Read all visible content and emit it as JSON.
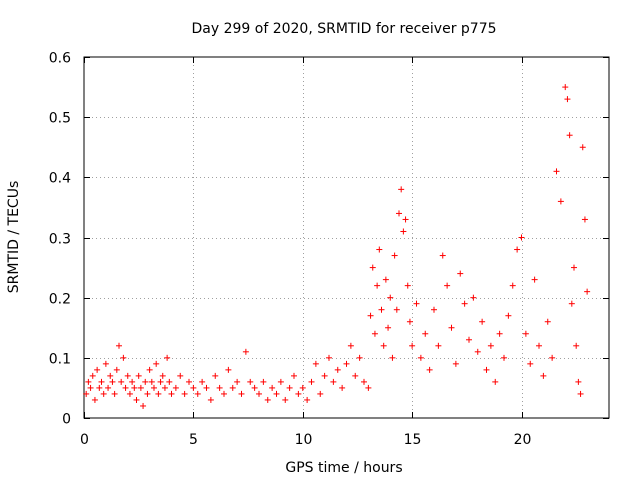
{
  "chart_data": {
    "type": "scatter",
    "title": "Day 299 of 2020, SRMTID for receiver p775",
    "xlabel": "GPS time / hours",
    "ylabel": "SRMTID / TECUs",
    "xlim": [
      0,
      24
    ],
    "ylim": [
      0,
      0.6
    ],
    "xticks": [
      0,
      5,
      10,
      15,
      20
    ],
    "xtick_labels": [
      "0",
      "5",
      "10",
      "15",
      "20"
    ],
    "yticks": [
      0,
      0.1,
      0.2,
      0.3,
      0.4,
      0.5,
      0.6
    ],
    "ytick_labels": [
      "0",
      "0.1",
      "0.2",
      "0.3",
      "0.4",
      "0.5",
      "0.6"
    ],
    "grid": true,
    "marker": "+",
    "color": "#ff0000",
    "series": [
      {
        "name": "SRMTID",
        "points": [
          [
            0.1,
            0.04
          ],
          [
            0.2,
            0.06
          ],
          [
            0.3,
            0.05
          ],
          [
            0.4,
            0.07
          ],
          [
            0.5,
            0.03
          ],
          [
            0.6,
            0.08
          ],
          [
            0.7,
            0.05
          ],
          [
            0.8,
            0.06
          ],
          [
            0.9,
            0.04
          ],
          [
            1.0,
            0.09
          ],
          [
            1.1,
            0.05
          ],
          [
            1.2,
            0.07
          ],
          [
            1.3,
            0.06
          ],
          [
            1.4,
            0.04
          ],
          [
            1.5,
            0.08
          ],
          [
            1.6,
            0.12
          ],
          [
            1.7,
            0.06
          ],
          [
            1.8,
            0.1
          ],
          [
            1.9,
            0.05
          ],
          [
            2.0,
            0.07
          ],
          [
            2.1,
            0.04
          ],
          [
            2.2,
            0.06
          ],
          [
            2.3,
            0.05
          ],
          [
            2.4,
            0.03
          ],
          [
            2.5,
            0.07
          ],
          [
            2.6,
            0.05
          ],
          [
            2.7,
            0.02
          ],
          [
            2.8,
            0.06
          ],
          [
            2.9,
            0.04
          ],
          [
            3.0,
            0.08
          ],
          [
            3.1,
            0.06
          ],
          [
            3.2,
            0.05
          ],
          [
            3.3,
            0.09
          ],
          [
            3.4,
            0.04
          ],
          [
            3.5,
            0.06
          ],
          [
            3.6,
            0.07
          ],
          [
            3.7,
            0.05
          ],
          [
            3.8,
            0.1
          ],
          [
            3.9,
            0.06
          ],
          [
            4.0,
            0.04
          ],
          [
            4.2,
            0.05
          ],
          [
            4.4,
            0.07
          ],
          [
            4.6,
            0.04
          ],
          [
            4.8,
            0.06
          ],
          [
            5.0,
            0.05
          ],
          [
            5.2,
            0.04
          ],
          [
            5.4,
            0.06
          ],
          [
            5.6,
            0.05
          ],
          [
            5.8,
            0.03
          ],
          [
            6.0,
            0.07
          ],
          [
            6.2,
            0.05
          ],
          [
            6.4,
            0.04
          ],
          [
            6.6,
            0.08
          ],
          [
            6.8,
            0.05
          ],
          [
            7.0,
            0.06
          ],
          [
            7.2,
            0.04
          ],
          [
            7.4,
            0.11
          ],
          [
            7.6,
            0.06
          ],
          [
            7.8,
            0.05
          ],
          [
            8.0,
            0.04
          ],
          [
            8.2,
            0.06
          ],
          [
            8.4,
            0.03
          ],
          [
            8.6,
            0.05
          ],
          [
            8.8,
            0.04
          ],
          [
            9.0,
            0.06
          ],
          [
            9.2,
            0.03
          ],
          [
            9.4,
            0.05
          ],
          [
            9.6,
            0.07
          ],
          [
            9.8,
            0.04
          ],
          [
            10.0,
            0.05
          ],
          [
            10.2,
            0.03
          ],
          [
            10.4,
            0.06
          ],
          [
            10.6,
            0.09
          ],
          [
            10.8,
            0.04
          ],
          [
            11.0,
            0.07
          ],
          [
            11.2,
            0.1
          ],
          [
            11.4,
            0.06
          ],
          [
            11.6,
            0.08
          ],
          [
            11.8,
            0.05
          ],
          [
            12.0,
            0.09
          ],
          [
            12.2,
            0.12
          ],
          [
            12.4,
            0.07
          ],
          [
            12.6,
            0.1
          ],
          [
            12.8,
            0.06
          ],
          [
            13.0,
            0.05
          ],
          [
            13.1,
            0.17
          ],
          [
            13.2,
            0.25
          ],
          [
            13.3,
            0.14
          ],
          [
            13.4,
            0.22
          ],
          [
            13.5,
            0.28
          ],
          [
            13.6,
            0.18
          ],
          [
            13.7,
            0.12
          ],
          [
            13.8,
            0.23
          ],
          [
            13.9,
            0.15
          ],
          [
            14.0,
            0.2
          ],
          [
            14.1,
            0.1
          ],
          [
            14.2,
            0.27
          ],
          [
            14.3,
            0.18
          ],
          [
            14.4,
            0.34
          ],
          [
            14.5,
            0.38
          ],
          [
            14.6,
            0.31
          ],
          [
            14.7,
            0.33
          ],
          [
            14.8,
            0.22
          ],
          [
            14.9,
            0.16
          ],
          [
            15.0,
            0.12
          ],
          [
            15.2,
            0.19
          ],
          [
            15.4,
            0.1
          ],
          [
            15.6,
            0.14
          ],
          [
            15.8,
            0.08
          ],
          [
            16.0,
            0.18
          ],
          [
            16.2,
            0.12
          ],
          [
            16.4,
            0.27
          ],
          [
            16.6,
            0.22
          ],
          [
            16.8,
            0.15
          ],
          [
            17.0,
            0.09
          ],
          [
            17.2,
            0.24
          ],
          [
            17.4,
            0.19
          ],
          [
            17.6,
            0.13
          ],
          [
            17.8,
            0.2
          ],
          [
            18.0,
            0.11
          ],
          [
            18.2,
            0.16
          ],
          [
            18.4,
            0.08
          ],
          [
            18.6,
            0.12
          ],
          [
            18.8,
            0.06
          ],
          [
            19.0,
            0.14
          ],
          [
            19.2,
            0.1
          ],
          [
            19.4,
            0.17
          ],
          [
            19.6,
            0.22
          ],
          [
            19.8,
            0.28
          ],
          [
            20.0,
            0.3
          ],
          [
            20.2,
            0.14
          ],
          [
            20.4,
            0.09
          ],
          [
            20.6,
            0.23
          ],
          [
            20.8,
            0.12
          ],
          [
            21.0,
            0.07
          ],
          [
            21.2,
            0.16
          ],
          [
            21.4,
            0.1
          ],
          [
            21.6,
            0.41
          ],
          [
            21.8,
            0.36
          ],
          [
            22.0,
            0.55
          ],
          [
            22.1,
            0.53
          ],
          [
            22.2,
            0.47
          ],
          [
            22.3,
            0.19
          ],
          [
            22.4,
            0.25
          ],
          [
            22.5,
            0.12
          ],
          [
            22.6,
            0.06
          ],
          [
            22.7,
            0.04
          ],
          [
            22.8,
            0.45
          ],
          [
            22.9,
            0.33
          ],
          [
            23.0,
            0.21
          ]
        ]
      }
    ]
  }
}
